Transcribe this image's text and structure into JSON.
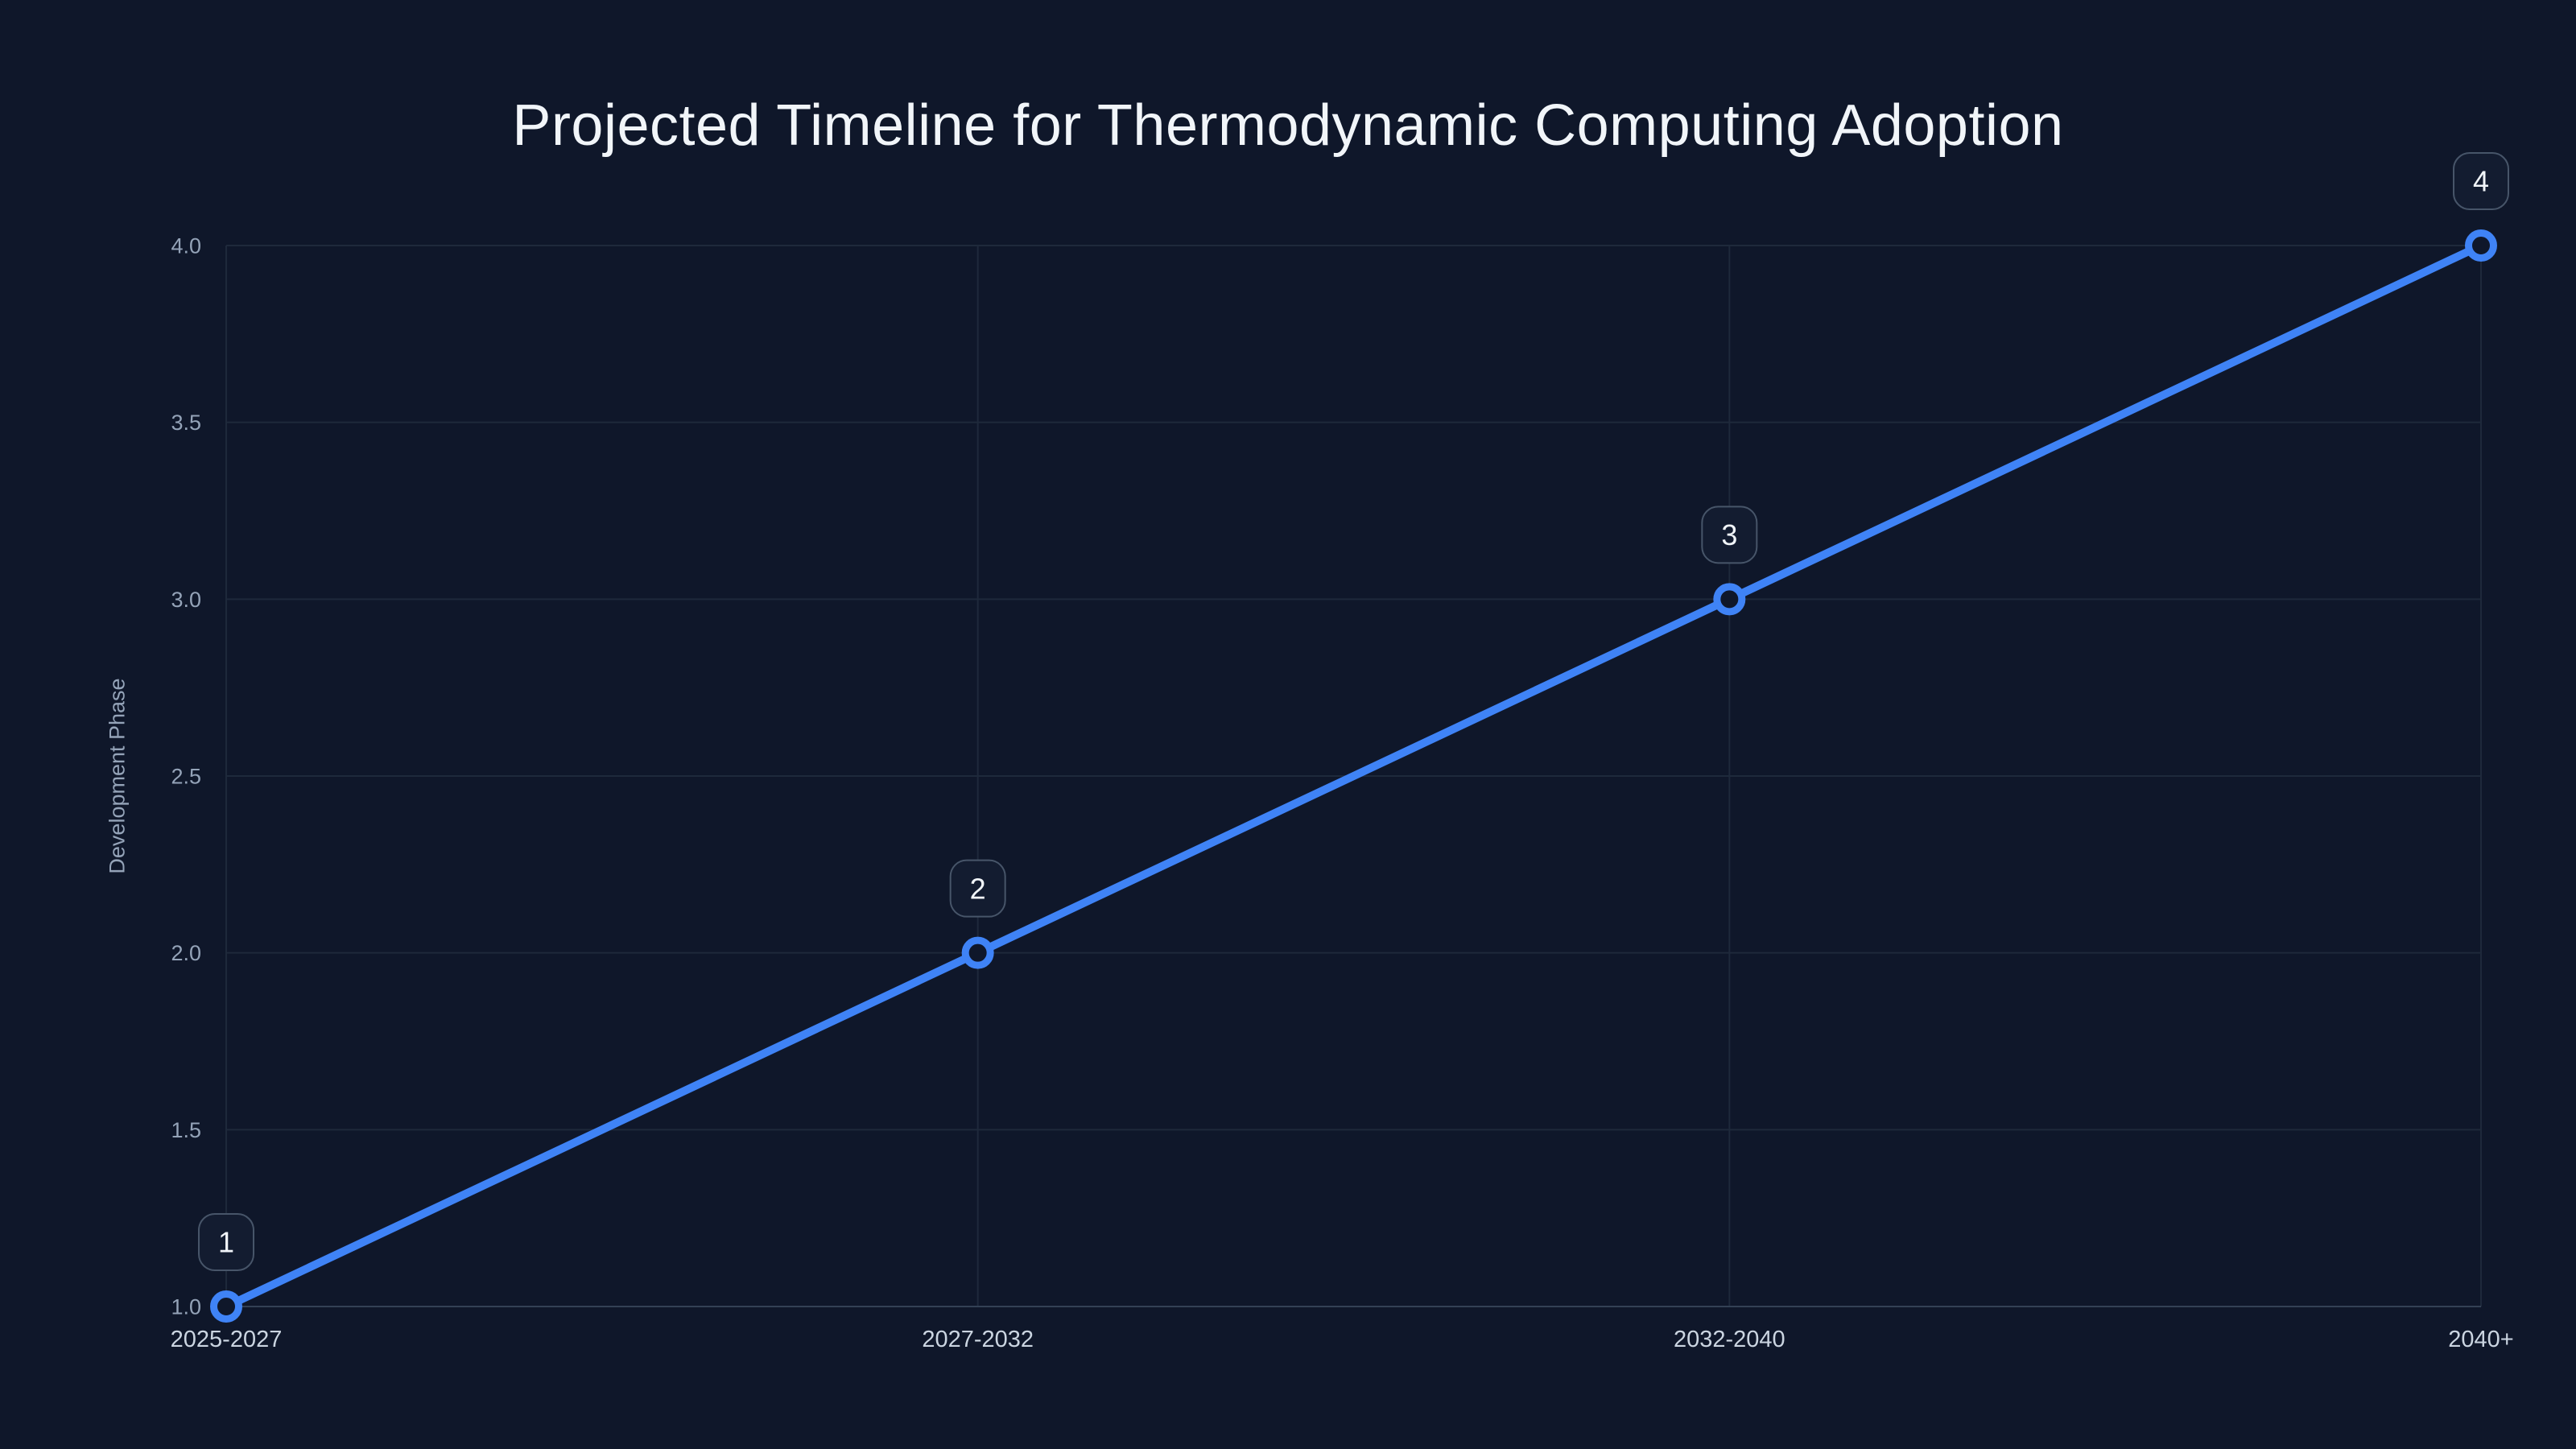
{
  "chart_data": {
    "type": "line",
    "title": "Projected Timeline for Thermodynamic Computing Adoption",
    "xlabel": "",
    "ylabel": "Development Phase",
    "categories": [
      "2025-2027",
      "2027-2032",
      "2032-2040",
      "2040+"
    ],
    "series": [
      {
        "name": "Development Phase",
        "values": [
          1,
          2,
          3,
          4
        ],
        "point_labels": [
          "1",
          "2",
          "3",
          "4"
        ]
      }
    ],
    "yticks": [
      1.0,
      1.5,
      2.0,
      2.5,
      3.0,
      3.5,
      4.0
    ],
    "ytick_labels": [
      "1.0",
      "1.5",
      "2.0",
      "2.5",
      "3.0",
      "3.5",
      "4.0"
    ],
    "ylim": [
      1.0,
      4.0
    ],
    "grid": true,
    "legend": false
  },
  "colors": {
    "background": "#0f172a",
    "line": "#3f83f6",
    "grid": "#1e293b",
    "axis_line": "#334155",
    "title_text": "#f1f5f9",
    "ytick_text": "#94a3b8",
    "xtick_text": "#cbd5e1",
    "axis_title_text": "#94a3b8",
    "badge_fill": "#131c30",
    "badge_border": "#475569",
    "badge_text": "#f1f5f9",
    "marker_fill": "#0f172a"
  }
}
